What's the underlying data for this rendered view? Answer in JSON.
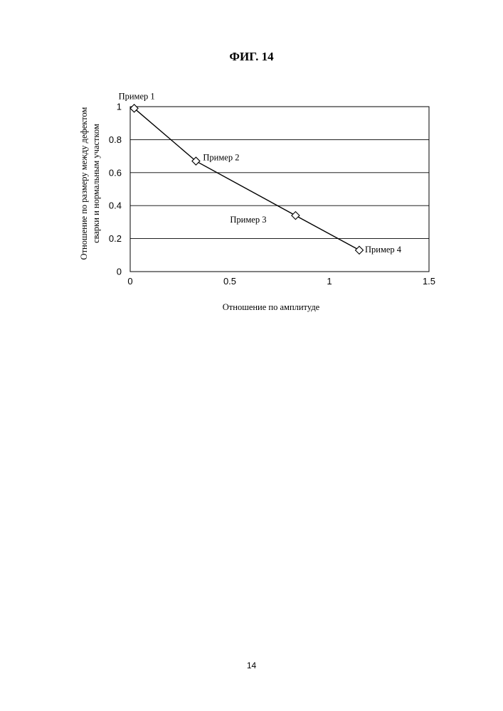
{
  "figure": {
    "title": "ФИГ. 14"
  },
  "page": {
    "number": "14"
  },
  "chart_data": {
    "type": "line",
    "xlabel": "Отношение по амплитуде",
    "ylabel": [
      "Отношение по размеру между дефектом",
      "сварки и нормальным участком"
    ],
    "xlim": [
      0,
      1.5
    ],
    "ylim": [
      0,
      1
    ],
    "x_ticks": [
      0,
      0.5,
      1,
      1.5
    ],
    "y_ticks": [
      0,
      0.2,
      0.4,
      0.6,
      0.8,
      1
    ],
    "grid": {
      "horizontal": true,
      "vertical": false
    },
    "marker": "diamond",
    "points": [
      {
        "label": "Пример 1",
        "x": 0.02,
        "y": 0.99
      },
      {
        "label": "Пример 2",
        "x": 0.33,
        "y": 0.67
      },
      {
        "label": "Пример 3",
        "x": 0.83,
        "y": 0.34
      },
      {
        "label": "Пример 4",
        "x": 1.15,
        "y": 0.13
      }
    ]
  }
}
